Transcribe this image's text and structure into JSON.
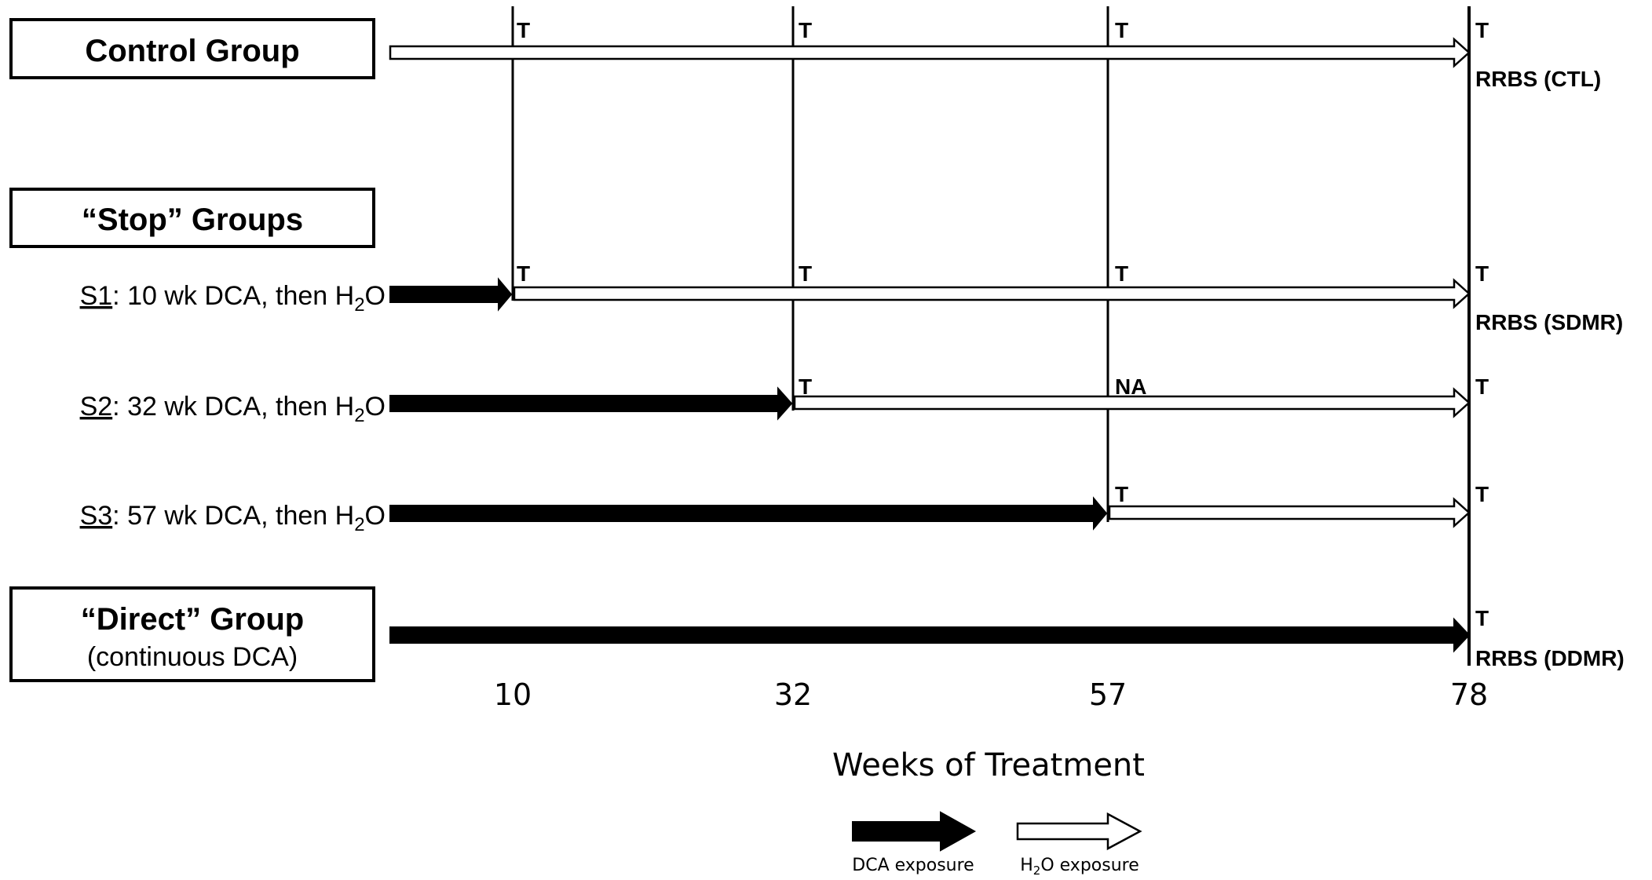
{
  "groups": {
    "control": {
      "label": "Control Group"
    },
    "stop": {
      "label": "“Stop” Groups"
    },
    "direct": {
      "label": "“Direct” Group",
      "sublabel": "(continuous DCA)"
    }
  },
  "rows": {
    "s1": {
      "id": "S1",
      "text_pre": ": 10 wk DCA, then H",
      "sub": "2",
      "text_post": "O"
    },
    "s2": {
      "id": "S2",
      "text_pre": ": 32 wk DCA, then H",
      "sub": "2",
      "text_post": "O"
    },
    "s3": {
      "id": "S3",
      "text_pre": ": 57 wk DCA, then H",
      "sub": "2",
      "text_post": "O"
    }
  },
  "marks": {
    "t": "T",
    "na": "NA",
    "rrbs_ctl": "RRBS (CTL)",
    "rrbs_sdmr": "RRBS (SDMR)",
    "rrbs_ddmr": "RRBS (DDMR)"
  },
  "axis": {
    "ticks": [
      "10",
      "32",
      "57",
      "78"
    ],
    "title": "Weeks of Treatment"
  },
  "legend": {
    "dca": "DCA exposure",
    "h2o_pre": "H",
    "h2o_sub": "2",
    "h2o_post": "O exposure"
  },
  "colors": {
    "dca_arrow": "#000000",
    "h2o_arrow": "#ffffff",
    "stroke": "#000000"
  }
}
